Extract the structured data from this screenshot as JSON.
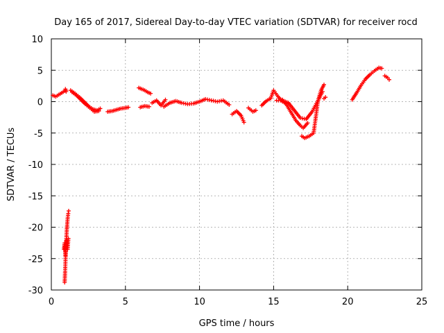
{
  "chart_data": {
    "type": "scatter",
    "title": "Day 165 of 2017, Sidereal Day-to-day VTEC variation (SDTVAR) for receiver rocd",
    "xlabel": "GPS time / hours",
    "ylabel": "SDTVAR / TECUs",
    "xlim": [
      0,
      25
    ],
    "ylim": [
      -30,
      10
    ],
    "xticks": [
      0,
      5,
      10,
      15,
      20,
      25
    ],
    "yticks": [
      -30,
      -25,
      -20,
      -15,
      -10,
      -5,
      0,
      5,
      10
    ],
    "grid": true,
    "marker": "+",
    "color": "#ff0000",
    "series": [
      {
        "name": "SDTVAR",
        "segments": [
          {
            "x": [
              0.9,
              0.93,
              0.96,
              0.99,
              1.02,
              1.05,
              1.08,
              1.11,
              1.14,
              1.17
            ],
            "y": [
              -28.8,
              -27.0,
              -25.0,
              -23.0,
              -21.5,
              -20.2,
              -19.2,
              -18.4,
              -17.8,
              -17.4
            ]
          },
          {
            "x": [
              0.85,
              0.9,
              0.95,
              1.0,
              1.05,
              1.1,
              1.15
            ],
            "y": [
              -23.5,
              -22.5,
              -24.5,
              -23.0,
              -22.0,
              -23.5,
              -21.8
            ]
          },
          {
            "x": [
              0.1,
              0.3,
              0.5,
              0.7,
              0.9,
              0.95,
              1.0
            ],
            "y": [
              1.0,
              0.8,
              1.1,
              1.4,
              1.7,
              2.0,
              1.6
            ]
          },
          {
            "x": [
              1.3,
              1.6,
              1.9,
              2.2,
              2.5,
              2.8,
              3.1,
              3.3
            ],
            "y": [
              1.8,
              1.3,
              0.7,
              0.0,
              -0.7,
              -1.2,
              -1.4,
              -1.1
            ]
          },
          {
            "x": [
              1.4,
              1.7,
              2.0,
              2.3,
              2.6,
              2.9,
              3.2
            ],
            "y": [
              1.5,
              1.0,
              0.3,
              -0.4,
              -1.0,
              -1.6,
              -1.5
            ]
          },
          {
            "x": [
              3.8,
              4.1,
              4.4,
              4.7,
              5.0,
              5.2
            ],
            "y": [
              -1.6,
              -1.5,
              -1.3,
              -1.1,
              -1.0,
              -0.9
            ]
          },
          {
            "x": [
              5.9,
              6.1,
              6.3,
              6.5,
              6.7
            ],
            "y": [
              2.2,
              2.0,
              1.8,
              1.5,
              1.3
            ]
          },
          {
            "x": [
              6.0,
              6.3,
              6.6
            ],
            "y": [
              -0.9,
              -0.7,
              -0.8
            ]
          },
          {
            "x": [
              6.8,
              7.1,
              7.4,
              7.7
            ],
            "y": [
              -0.2,
              0.2,
              -0.6,
              0.3
            ]
          },
          {
            "x": [
              7.6,
              8.0,
              8.4,
              8.8,
              9.2,
              9.6,
              10.0,
              10.4,
              10.8,
              11.2,
              11.6,
              12.0
            ],
            "y": [
              -0.8,
              -0.2,
              0.1,
              -0.2,
              -0.4,
              -0.3,
              0.0,
              0.4,
              0.2,
              0.0,
              0.2,
              -0.5
            ]
          },
          {
            "x": [
              12.2,
              12.5,
              12.8,
              13.0
            ],
            "y": [
              -2.0,
              -1.5,
              -2.2,
              -3.3
            ]
          },
          {
            "x": [
              13.3,
              13.6,
              13.8
            ],
            "y": [
              -1.0,
              -1.6,
              -1.4
            ]
          },
          {
            "x": [
              14.2,
              14.5,
              14.8,
              15.0,
              15.3,
              15.6,
              15.9
            ],
            "y": [
              -0.6,
              0.1,
              0.5,
              1.8,
              0.8,
              0.0,
              -0.3
            ]
          },
          {
            "x": [
              15.2,
              15.6,
              16.0,
              16.4,
              16.8,
              17.2,
              17.6,
              18.0,
              18.3
            ],
            "y": [
              0.2,
              0.2,
              -0.2,
              -1.4,
              -2.6,
              -2.8,
              -1.6,
              0.2,
              1.6
            ]
          },
          {
            "x": [
              15.6,
              15.9,
              16.2,
              16.5,
              16.8,
              17.0,
              17.3
            ],
            "y": [
              0.3,
              -0.6,
              -1.8,
              -3.0,
              -3.8,
              -4.2,
              -3.4
            ]
          },
          {
            "x": [
              16.9,
              17.1,
              17.4,
              17.7,
              18.0,
              18.2,
              18.4
            ],
            "y": [
              -5.5,
              -5.8,
              -5.5,
              -5.0,
              0.2,
              1.8,
              2.7
            ]
          },
          {
            "x": [
              18.4,
              18.5
            ],
            "y": [
              0.5,
              0.7
            ]
          },
          {
            "x": [
              20.3,
              20.6,
              20.9,
              21.2,
              21.5,
              21.8,
              22.1,
              22.3
            ],
            "y": [
              0.3,
              1.4,
              2.6,
              3.6,
              4.3,
              4.9,
              5.4,
              5.3
            ]
          },
          {
            "x": [
              22.5,
              22.7,
              22.8
            ],
            "y": [
              4.1,
              3.8,
              3.5
            ]
          }
        ]
      }
    ]
  }
}
